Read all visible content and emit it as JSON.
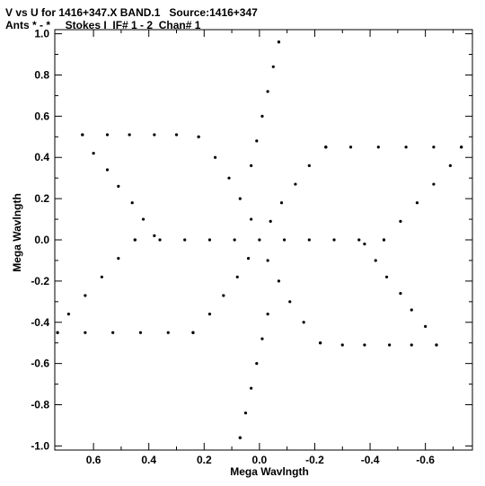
{
  "header": {
    "title": "V vs U for 1416+347.X BAND.1   Source:1416+347",
    "subtitle": "Ants * - *     Stokes I  IF# 1 - 2  Chan# 1"
  },
  "chart_data": {
    "type": "scatter",
    "title": "V vs U for 1416+347.X BAND.1   Source:1416+347",
    "subtitle": "Ants * - *     Stokes I  IF# 1 - 2  Chan# 1",
    "xlabel": "Mega Wavlngth",
    "ylabel": "Mega Wavlngth",
    "xlim": [
      0.74,
      -0.77
    ],
    "ylim": [
      -1.02,
      1.02
    ],
    "x_reversed": true,
    "xticks": [
      0.6,
      0.4,
      0.2,
      0.0,
      -0.2,
      -0.4,
      -0.6
    ],
    "xtick_labels": [
      "0.6",
      "0.4",
      "0.2",
      "0.0",
      "-0.2",
      "-0.4",
      "-0.6"
    ],
    "yticks": [
      1.0,
      0.8,
      0.6,
      0.4,
      0.2,
      0.0,
      -0.2,
      -0.4,
      -0.6,
      -0.8,
      -1.0
    ],
    "ytick_labels": [
      "1.0",
      "0.8",
      "0.6",
      "0.4",
      "0.2",
      "0.0",
      "-0.2",
      "-0.4",
      "-0.6",
      "-0.8",
      "-1.0"
    ],
    "grid": false,
    "marker_color": "#000000",
    "points_description": "uv-coverage: six-pointed star (hexagram) pattern, symmetric under (u,v)->(-u,-v)",
    "series": [
      {
        "points": [
          [
            -0.07,
            0.96
          ],
          [
            -0.05,
            0.84
          ],
          [
            -0.03,
            0.72
          ],
          [
            -0.01,
            0.6
          ],
          [
            0.01,
            0.48
          ],
          [
            0.03,
            0.36
          ],
          [
            0.07,
            -0.96
          ],
          [
            0.05,
            -0.84
          ],
          [
            0.03,
            -0.72
          ],
          [
            0.01,
            -0.6
          ],
          [
            -0.01,
            -0.48
          ],
          [
            -0.03,
            -0.36
          ],
          [
            0.64,
            0.51
          ],
          [
            0.55,
            0.51
          ],
          [
            0.47,
            0.51
          ],
          [
            0.38,
            0.51
          ],
          [
            0.3,
            0.51
          ],
          [
            0.22,
            0.5
          ],
          [
            -0.64,
            -0.51
          ],
          [
            -0.55,
            -0.51
          ],
          [
            -0.47,
            -0.51
          ],
          [
            -0.38,
            -0.51
          ],
          [
            -0.3,
            -0.51
          ],
          [
            -0.22,
            -0.5
          ],
          [
            -0.73,
            0.45
          ],
          [
            -0.63,
            0.45
          ],
          [
            -0.53,
            0.45
          ],
          [
            -0.43,
            0.45
          ],
          [
            -0.33,
            0.45
          ],
          [
            -0.24,
            0.45
          ],
          [
            0.73,
            -0.45
          ],
          [
            0.63,
            -0.45
          ],
          [
            0.53,
            -0.45
          ],
          [
            0.43,
            -0.45
          ],
          [
            0.33,
            -0.45
          ],
          [
            0.24,
            -0.45
          ],
          [
            0.6,
            0.42
          ],
          [
            0.55,
            0.34
          ],
          [
            0.51,
            0.26
          ],
          [
            0.46,
            0.18
          ],
          [
            0.42,
            0.1
          ],
          [
            0.38,
            0.02
          ],
          [
            -0.6,
            -0.42
          ],
          [
            -0.55,
            -0.34
          ],
          [
            -0.51,
            -0.26
          ],
          [
            -0.46,
            -0.18
          ],
          [
            -0.42,
            -0.1
          ],
          [
            -0.38,
            -0.02
          ],
          [
            -0.69,
            0.36
          ],
          [
            -0.63,
            0.27
          ],
          [
            -0.57,
            0.18
          ],
          [
            -0.51,
            0.09
          ],
          [
            -0.45,
            0.0
          ],
          [
            0.69,
            -0.36
          ],
          [
            0.63,
            -0.27
          ],
          [
            0.57,
            -0.18
          ],
          [
            0.51,
            -0.09
          ],
          [
            0.45,
            0.0
          ],
          [
            0.22,
            0.5
          ],
          [
            0.16,
            0.4
          ],
          [
            0.11,
            0.3
          ],
          [
            0.07,
            0.2
          ],
          [
            0.03,
            0.1
          ],
          [
            0.0,
            0.0
          ],
          [
            -0.22,
            -0.5
          ],
          [
            -0.16,
            -0.4
          ],
          [
            -0.11,
            -0.3
          ],
          [
            -0.07,
            -0.2
          ],
          [
            -0.03,
            -0.1
          ],
          [
            -0.24,
            0.45
          ],
          [
            -0.18,
            0.36
          ],
          [
            -0.13,
            0.27
          ],
          [
            -0.08,
            0.18
          ],
          [
            -0.04,
            0.09
          ],
          [
            0.24,
            -0.45
          ],
          [
            0.18,
            -0.36
          ],
          [
            0.13,
            -0.27
          ],
          [
            0.08,
            -0.18
          ],
          [
            0.04,
            -0.09
          ],
          [
            0.45,
            0.0
          ],
          [
            0.36,
            0.0
          ],
          [
            0.27,
            0.0
          ],
          [
            0.18,
            0.0
          ],
          [
            0.09,
            0.0
          ],
          [
            -0.45,
            0.0
          ],
          [
            -0.36,
            0.0
          ],
          [
            -0.27,
            0.0
          ],
          [
            -0.18,
            0.0
          ],
          [
            -0.09,
            0.0
          ],
          [
            -0.07,
            0.96
          ],
          [
            -0.24,
            0.45
          ],
          [
            -0.73,
            0.45
          ],
          [
            -0.64,
            -0.51
          ],
          [
            0.07,
            -0.96
          ],
          [
            0.24,
            -0.45
          ],
          [
            0.73,
            -0.45
          ],
          [
            0.64,
            0.51
          ]
        ]
      }
    ]
  }
}
